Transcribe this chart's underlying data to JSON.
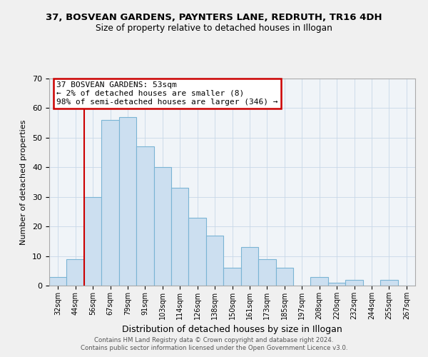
{
  "title": "37, BOSVEAN GARDENS, PAYNTERS LANE, REDRUTH, TR16 4DH",
  "subtitle": "Size of property relative to detached houses in Illogan",
  "xlabel": "Distribution of detached houses by size in Illogan",
  "ylabel": "Number of detached properties",
  "bar_color": "#ccdff0",
  "bar_edge_color": "#7ab4d4",
  "categories": [
    "32sqm",
    "44sqm",
    "56sqm",
    "67sqm",
    "79sqm",
    "91sqm",
    "103sqm",
    "114sqm",
    "126sqm",
    "138sqm",
    "150sqm",
    "161sqm",
    "173sqm",
    "185sqm",
    "197sqm",
    "208sqm",
    "220sqm",
    "232sqm",
    "244sqm",
    "255sqm",
    "267sqm"
  ],
  "values": [
    3,
    9,
    30,
    56,
    57,
    47,
    40,
    33,
    23,
    17,
    6,
    13,
    9,
    6,
    0,
    3,
    1,
    2,
    0,
    2,
    0
  ],
  "ylim": [
    0,
    70
  ],
  "yticks": [
    0,
    10,
    20,
    30,
    40,
    50,
    60,
    70
  ],
  "vline_x": 1.5,
  "vline_color": "#cc0000",
  "annotation_line1": "37 BOSVEAN GARDENS: 53sqm",
  "annotation_line2": "← 2% of detached houses are smaller (8)",
  "annotation_line3": "98% of semi-detached houses are larger (346) →",
  "footer1": "Contains HM Land Registry data © Crown copyright and database right 2024.",
  "footer2": "Contains public sector information licensed under the Open Government Licence v3.0.",
  "background_color": "#f0f0f0",
  "plot_bg_color": "#f0f4f8"
}
